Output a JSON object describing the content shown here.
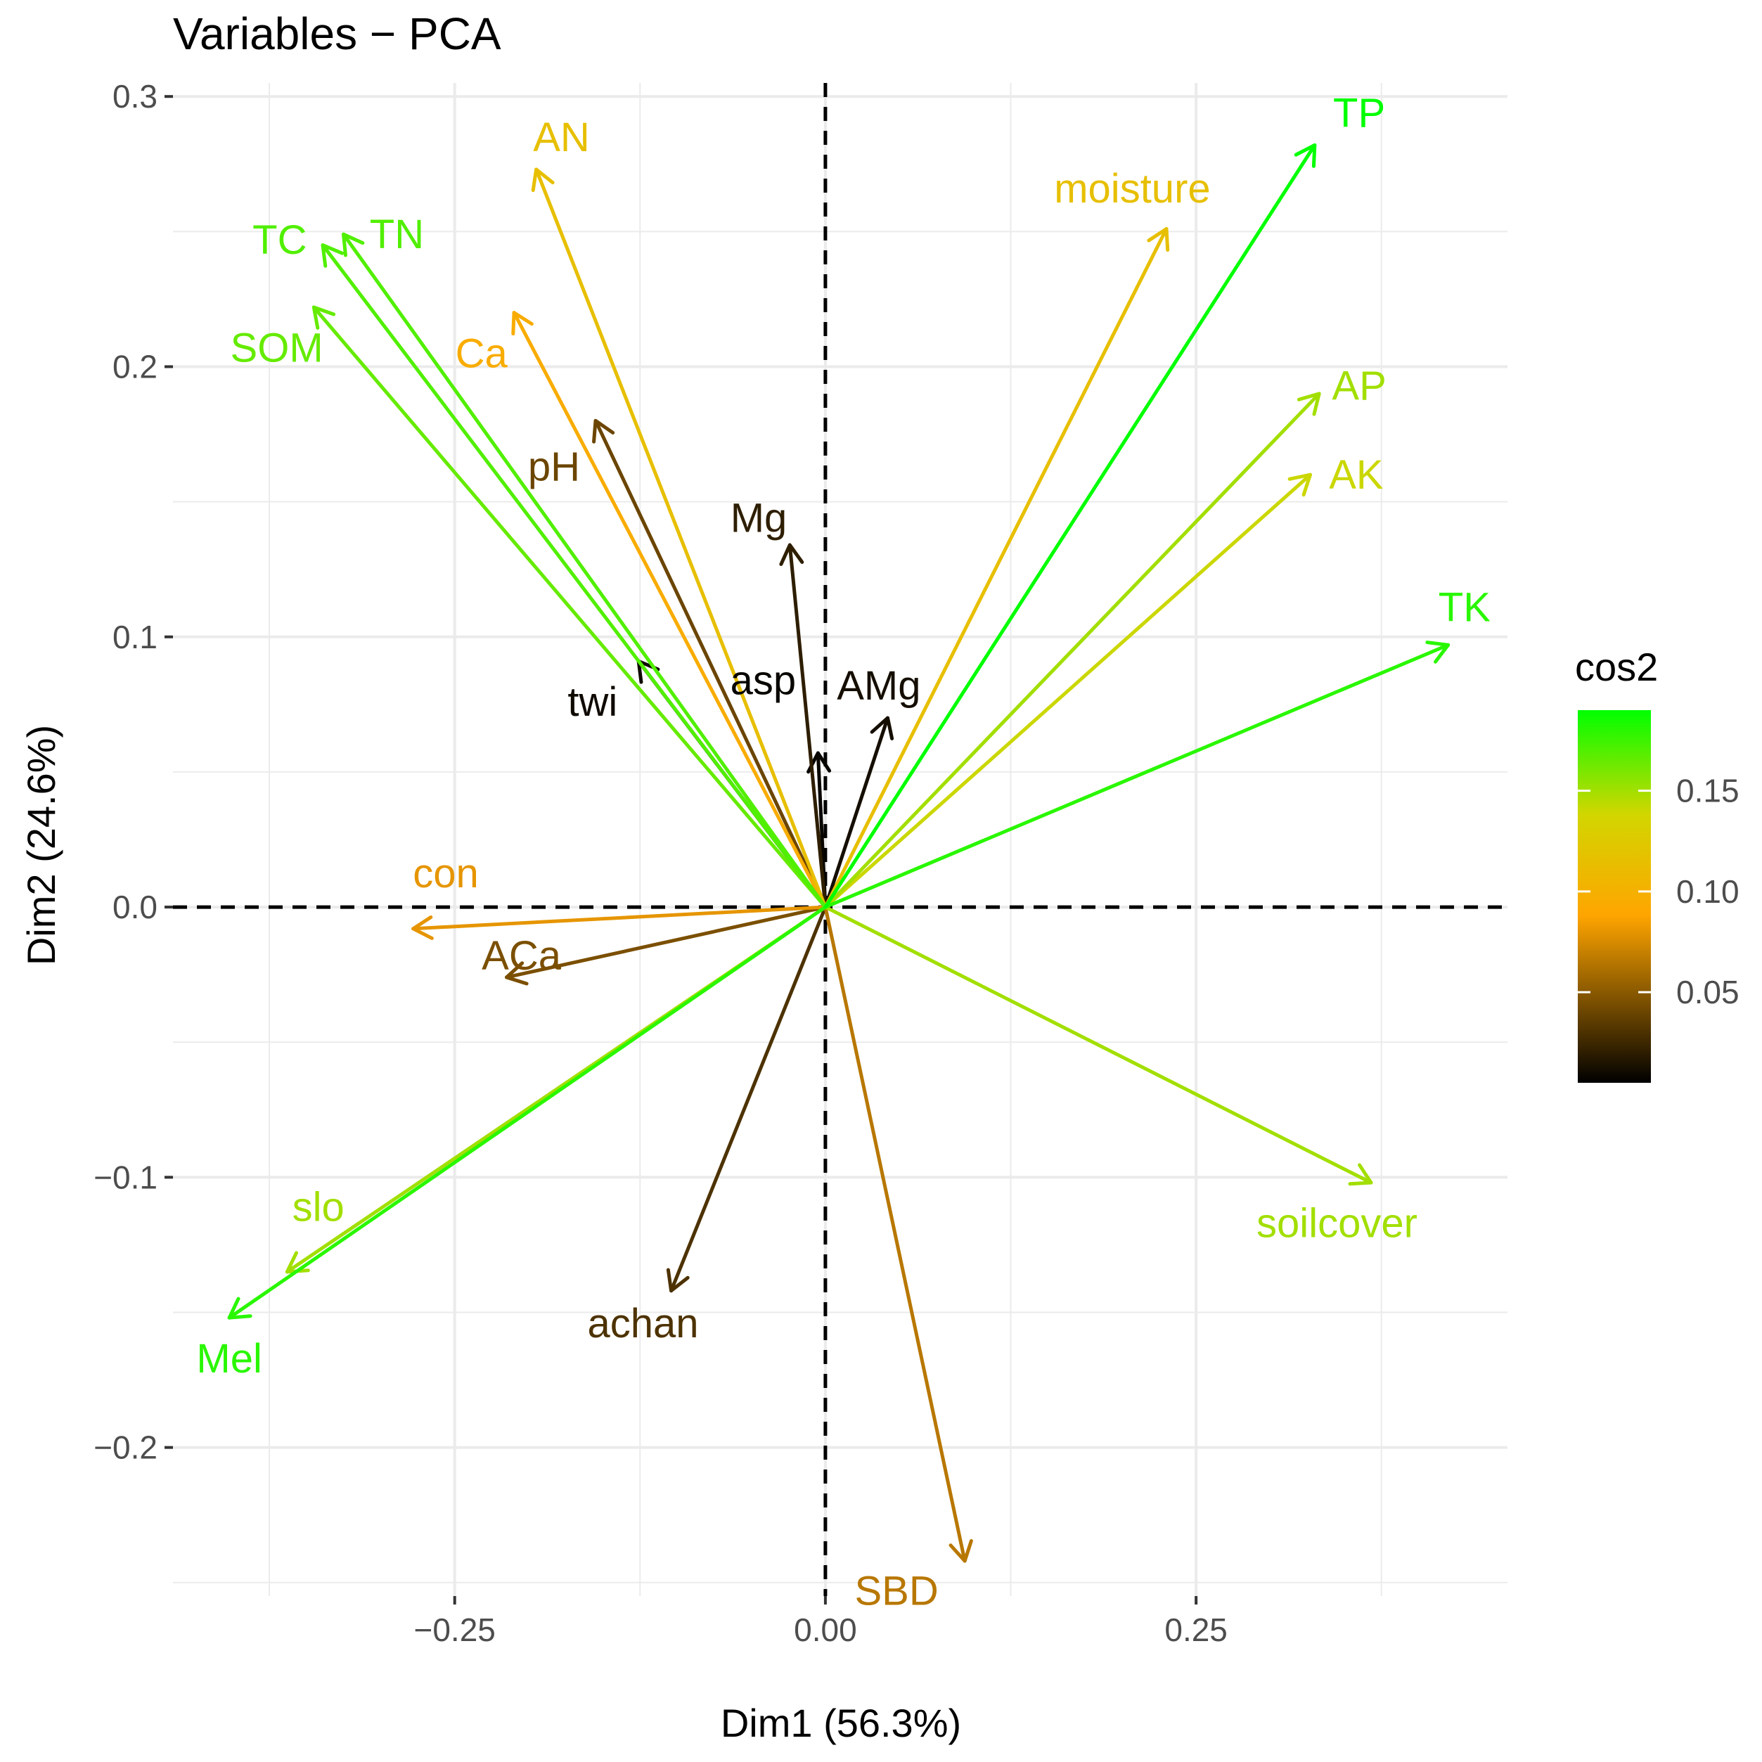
{
  "chart_data": {
    "type": "pca-variables",
    "title": "Variables − PCA",
    "xlabel": "Dim1 (56.3%)",
    "ylabel": "Dim2 (24.6%)",
    "xlim": [
      -0.44,
      0.46
    ],
    "ylim": [
      -0.255,
      0.305
    ],
    "xticks": [
      -0.25,
      0.0,
      0.25
    ],
    "xtick_labels": [
      "−0.25",
      "0.00",
      "0.25"
    ],
    "yticks": [
      -0.2,
      -0.1,
      0.0,
      0.1,
      0.2,
      0.3
    ],
    "ytick_labels": [
      "−0.2",
      "−0.1",
      "0.0",
      "0.1",
      "0.2",
      "0.3"
    ],
    "legend": {
      "title": "cos2",
      "position": "right",
      "range": [
        0.005,
        0.19
      ],
      "ticks": [
        0.05,
        0.1,
        0.15
      ],
      "tick_labels": [
        "0.05",
        "0.10",
        "0.15"
      ],
      "gradient": [
        "#000000",
        "#FFA500",
        "#D2D600",
        "#00FF00"
      ]
    },
    "variables": [
      {
        "name": "TP",
        "x": 0.33,
        "y": 0.282,
        "label_x": 0.36,
        "label_y": 0.294,
        "cos2": 0.19
      },
      {
        "name": "moisture",
        "x": 0.23,
        "y": 0.251,
        "label_x": 0.207,
        "label_y": 0.266,
        "cos2": 0.115
      },
      {
        "name": "AP",
        "x": 0.333,
        "y": 0.19,
        "label_x": 0.36,
        "label_y": 0.193,
        "cos2": 0.15
      },
      {
        "name": "AK",
        "x": 0.327,
        "y": 0.16,
        "label_x": 0.358,
        "label_y": 0.16,
        "cos2": 0.14
      },
      {
        "name": "TK",
        "x": 0.42,
        "y": 0.097,
        "label_x": 0.431,
        "label_y": 0.111,
        "cos2": 0.18
      },
      {
        "name": "soilcover",
        "x": 0.368,
        "y": -0.102,
        "label_x": 0.345,
        "label_y": -0.117,
        "cos2": 0.15
      },
      {
        "name": "SBD",
        "x": 0.094,
        "y": -0.242,
        "label_x": 0.048,
        "label_y": -0.253,
        "cos2": 0.065
      },
      {
        "name": "achan",
        "x": -0.104,
        "y": -0.142,
        "label_x": -0.123,
        "label_y": -0.154,
        "cos2": 0.03
      },
      {
        "name": "Mel",
        "x": -0.402,
        "y": -0.152,
        "label_x": -0.402,
        "label_y": -0.167,
        "cos2": 0.18
      },
      {
        "name": "slo",
        "x": -0.363,
        "y": -0.135,
        "label_x": -0.342,
        "label_y": -0.111,
        "cos2": 0.15
      },
      {
        "name": "ACa",
        "x": -0.215,
        "y": -0.026,
        "label_x": -0.205,
        "label_y": -0.018,
        "cos2": 0.045
      },
      {
        "name": "con",
        "x": -0.278,
        "y": -0.008,
        "label_x": -0.256,
        "label_y": 0.0125,
        "cos2": 0.08
      },
      {
        "name": "twi",
        "x": -0.126,
        "y": 0.091,
        "label_x": -0.157,
        "label_y": 0.076,
        "cos2": 0.01
      },
      {
        "name": "asp",
        "x": -0.005,
        "y": 0.057,
        "label_x": -0.042,
        "label_y": 0.084,
        "cos2": 0.008
      },
      {
        "name": "AMg",
        "x": 0.042,
        "y": 0.07,
        "label_x": 0.036,
        "label_y": 0.082,
        "cos2": 0.012
      },
      {
        "name": "Mg",
        "x": -0.024,
        "y": 0.134,
        "label_x": -0.045,
        "label_y": 0.144,
        "cos2": 0.02
      },
      {
        "name": "pH",
        "x": -0.155,
        "y": 0.18,
        "label_x": -0.183,
        "label_y": 0.163,
        "cos2": 0.04
      },
      {
        "name": "Ca",
        "x": -0.21,
        "y": 0.22,
        "label_x": -0.232,
        "label_y": 0.205,
        "cos2": 0.095
      },
      {
        "name": "AN",
        "x": -0.195,
        "y": 0.273,
        "label_x": -0.178,
        "label_y": 0.285,
        "cos2": 0.115
      },
      {
        "name": "TN",
        "x": -0.325,
        "y": 0.249,
        "label_x": -0.289,
        "label_y": 0.249,
        "cos2": 0.17
      },
      {
        "name": "TC",
        "x": -0.339,
        "y": 0.245,
        "label_x": -0.368,
        "label_y": 0.247,
        "cos2": 0.17
      },
      {
        "name": "SOM",
        "x": -0.345,
        "y": 0.222,
        "label_x": -0.37,
        "label_y": 0.207,
        "cos2": 0.165
      }
    ]
  }
}
